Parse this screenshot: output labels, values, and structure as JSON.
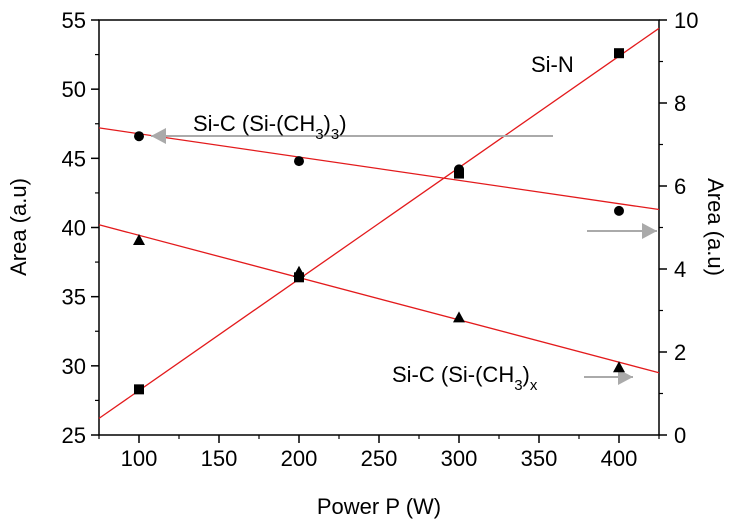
{
  "chart_data": {
    "type": "scatter",
    "title": "",
    "xlabel": "Power P (W)",
    "ylabel_left": "Area (a.u)",
    "ylabel_right": "Area (a.u)",
    "xlim": [
      75,
      425
    ],
    "ylim_left": [
      25,
      55
    ],
    "ylim_right": [
      0,
      10
    ],
    "x_ticks": [
      "100",
      "150",
      "200",
      "250",
      "300",
      "350",
      "400"
    ],
    "y_left_ticks": [
      "25",
      "30",
      "35",
      "40",
      "45",
      "50",
      "55"
    ],
    "y_right_ticks": [
      "0",
      "2",
      "4",
      "6",
      "8",
      "10"
    ],
    "grid": false,
    "legend": "none",
    "series": [
      {
        "axis": "left",
        "marker": "circle",
        "x": [
          100,
          200,
          300,
          400
        ],
        "values": [
          46.6,
          44.8,
          44.2,
          41.2
        ],
        "fit": [
          [
            75,
            47.2
          ],
          [
            425,
            41.3
          ]
        ]
      },
      {
        "axis": "left",
        "marker": "triangle",
        "x": [
          100,
          200,
          300,
          400
        ],
        "values": [
          39.1,
          36.8,
          33.5,
          29.9
        ],
        "fit": [
          [
            75,
            40.2
          ],
          [
            425,
            29.5
          ]
        ]
      },
      {
        "axis": "right",
        "marker": "square",
        "x": [
          100,
          200,
          300,
          400
        ],
        "values": [
          1.1,
          3.8,
          6.3,
          9.2
        ],
        "fit": [
          [
            75,
            0.4
          ],
          [
            425,
            9.8
          ]
        ]
      }
    ],
    "annotations": [
      {
        "text": "Si-N"
      },
      {
        "main": "Si-C (Si-(CH",
        "sub1": "3",
        "mid": ")",
        "sub2": "3",
        "end": ")"
      },
      {
        "main": "Si-C (Si-(CH",
        "sub1": "3",
        "mid": ")",
        "sub2": "x"
      }
    ],
    "colors": {
      "fit_line": "#e31a1c",
      "marker": "#000000",
      "arrow": "#aaaaaa",
      "axis": "#000000"
    }
  }
}
